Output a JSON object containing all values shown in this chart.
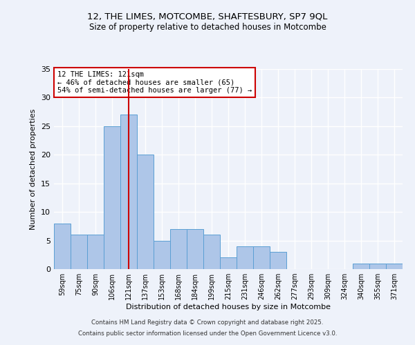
{
  "title_line1": "12, THE LIMES, MOTCOMBE, SHAFTESBURY, SP7 9QL",
  "title_line2": "Size of property relative to detached houses in Motcombe",
  "categories": [
    "59sqm",
    "75sqm",
    "90sqm",
    "106sqm",
    "121sqm",
    "137sqm",
    "153sqm",
    "168sqm",
    "184sqm",
    "199sqm",
    "215sqm",
    "231sqm",
    "246sqm",
    "262sqm",
    "277sqm",
    "293sqm",
    "309sqm",
    "324sqm",
    "340sqm",
    "355sqm",
    "371sqm"
  ],
  "values": [
    8,
    6,
    6,
    25,
    27,
    20,
    5,
    7,
    7,
    6,
    2,
    4,
    4,
    3,
    0,
    0,
    0,
    0,
    1,
    1,
    1
  ],
  "bar_color": "#aec6e8",
  "bar_edge_color": "#5a9fd4",
  "highlight_index": 4,
  "highlight_color": "#cc0000",
  "xlabel": "Distribution of detached houses by size in Motcombe",
  "ylabel": "Number of detached properties",
  "ylim": [
    0,
    35
  ],
  "yticks": [
    0,
    5,
    10,
    15,
    20,
    25,
    30,
    35
  ],
  "annotation_title": "12 THE LIMES: 121sqm",
  "annotation_line1": "← 46% of detached houses are smaller (65)",
  "annotation_line2": "54% of semi-detached houses are larger (77) →",
  "annotation_box_color": "#ffffff",
  "annotation_box_edge": "#cc0000",
  "background_color": "#eef2fa",
  "grid_color": "#ffffff",
  "footer_line1": "Contains HM Land Registry data © Crown copyright and database right 2025.",
  "footer_line2": "Contains public sector information licensed under the Open Government Licence v3.0."
}
